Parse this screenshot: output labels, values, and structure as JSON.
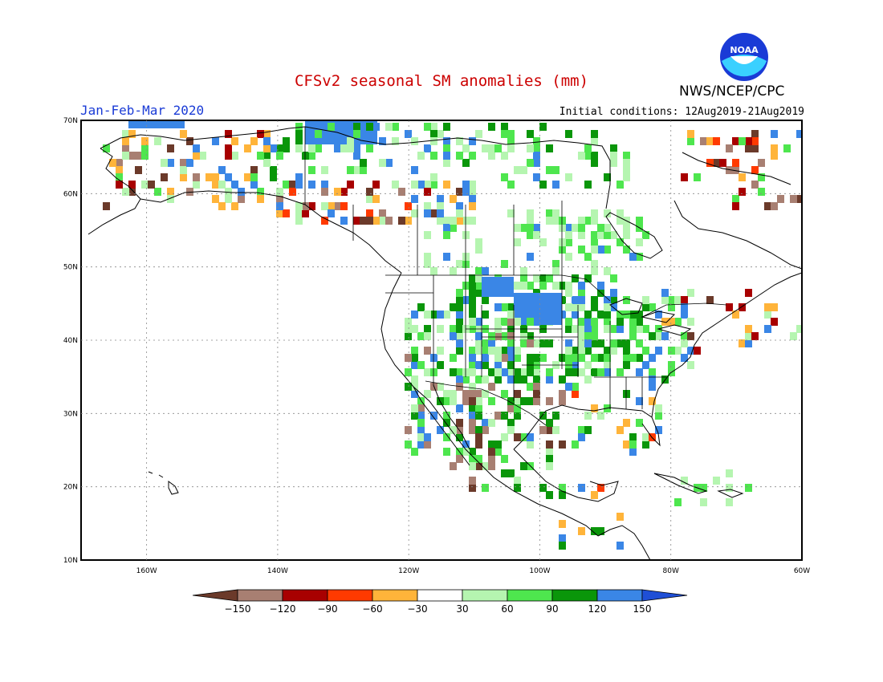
{
  "header": {
    "title": "CFSv2 seasonal SM anomalies (mm)",
    "period": "Jan-Feb-Mar 2020",
    "initial_conditions": "Initial conditions: 12Aug2019-21Aug2019",
    "agency": "NWS/NCEP/CPC",
    "logo_text": "NOAA"
  },
  "map": {
    "lat_labels": [
      "70N",
      "60N",
      "50N",
      "40N",
      "30N",
      "20N",
      "10N"
    ],
    "lon_labels": [
      "160W",
      "140W",
      "120W",
      "100W",
      "80W",
      "60W"
    ],
    "lat_range": [
      10,
      70
    ],
    "lon_range": [
      -170,
      -60
    ]
  },
  "legend": {
    "labels": [
      "-150",
      "-120",
      "-90",
      "-60",
      "-30",
      "30",
      "60",
      "90",
      "120",
      "150"
    ],
    "colors": {
      "lt_-150": "#6b3a2a",
      "-150_-120": "#a87f72",
      "-120_-90": "#a80000",
      "-90_-60": "#ff3a00",
      "-60_-30": "#ffb43a",
      "-30_30": "#ffffff",
      "30_60": "#b5f5b0",
      "60_90": "#4ee64e",
      "90_120": "#0a960a",
      "120_150": "#3a86e6",
      "gt_150": "#1f4fd6"
    }
  }
}
